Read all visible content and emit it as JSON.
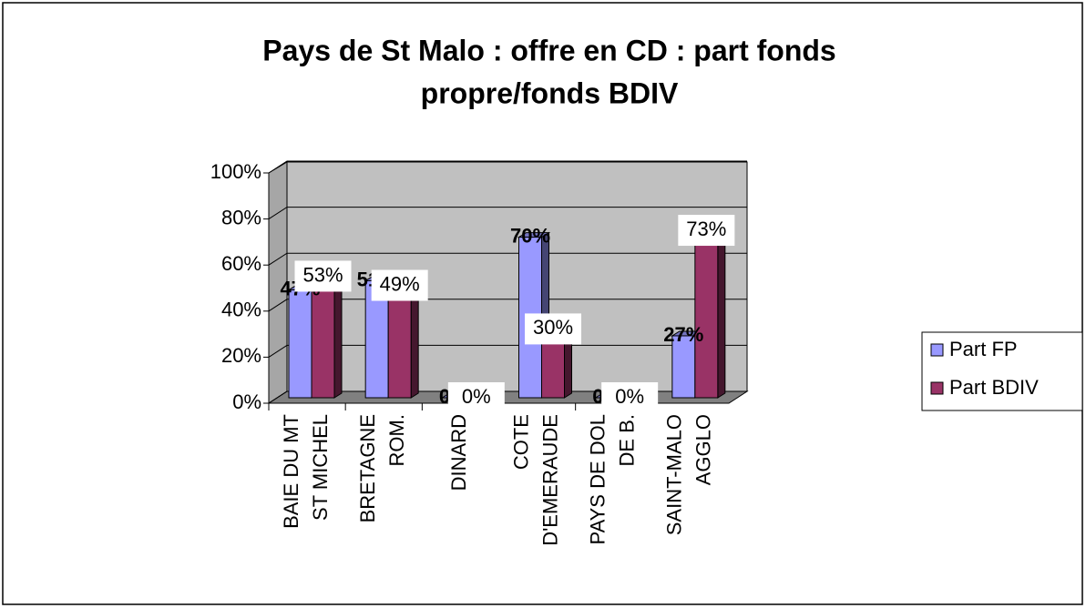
{
  "chart_data": {
    "type": "bar3d",
    "title": [
      "Pays de St Malo : offre en CD : part fonds",
      "propre/fonds BDIV"
    ],
    "categories": [
      [
        "BAIE DU MT",
        "ST MICHEL"
      ],
      [
        "BRETAGNE",
        "ROM."
      ],
      [
        "DINARD"
      ],
      [
        "COTE",
        "D'EMERAUDE"
      ],
      [
        "PAYS DE DOL",
        "DE B."
      ],
      [
        "SAINT-MALO",
        "AGGLO"
      ]
    ],
    "series": [
      {
        "name": "Part FP",
        "color": "#9999ff",
        "values": [
          47,
          51,
          0,
          70,
          0,
          27
        ],
        "value_labels": [
          "47%",
          "51%",
          "0%",
          "70%",
          "0%",
          "27%"
        ]
      },
      {
        "name": "Part BDIV",
        "color": "#993366",
        "values": [
          53,
          49,
          0,
          30,
          0,
          73
        ],
        "value_labels": [
          "53%",
          "49%",
          "0%",
          "30%",
          "0%",
          "73%"
        ]
      }
    ],
    "ylim": [
      0,
      100
    ],
    "yticks": [
      {
        "value": 0,
        "label": "0%"
      },
      {
        "value": 20,
        "label": "20%"
      },
      {
        "value": 40,
        "label": "40%"
      },
      {
        "value": 60,
        "label": "60%"
      },
      {
        "value": 80,
        "label": "80%"
      },
      {
        "value": 100,
        "label": "100%"
      }
    ],
    "grid": true,
    "legend": "right"
  }
}
